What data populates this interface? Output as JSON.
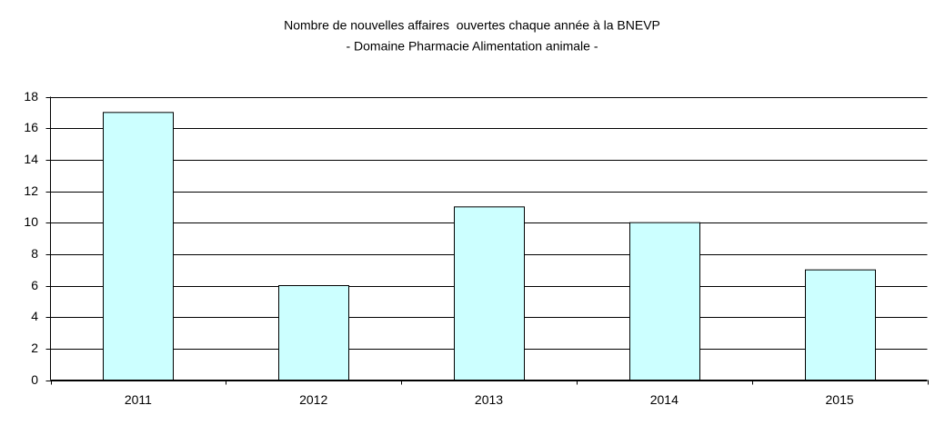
{
  "chart_data": {
    "type": "bar",
    "title": "Nombre de nouvelles affaires  ouvertes chaque année à la BNEVP",
    "subtitle": "- Domaine Pharmacie Alimentation animale -",
    "categories": [
      "2011",
      "2012",
      "2013",
      "2014",
      "2015"
    ],
    "values": [
      17,
      6,
      11,
      10,
      7
    ],
    "color": "#ccffff",
    "ylim": [
      0,
      18
    ],
    "yticks": [
      0,
      2,
      4,
      6,
      8,
      10,
      12,
      14,
      16,
      18
    ],
    "grid": true
  }
}
